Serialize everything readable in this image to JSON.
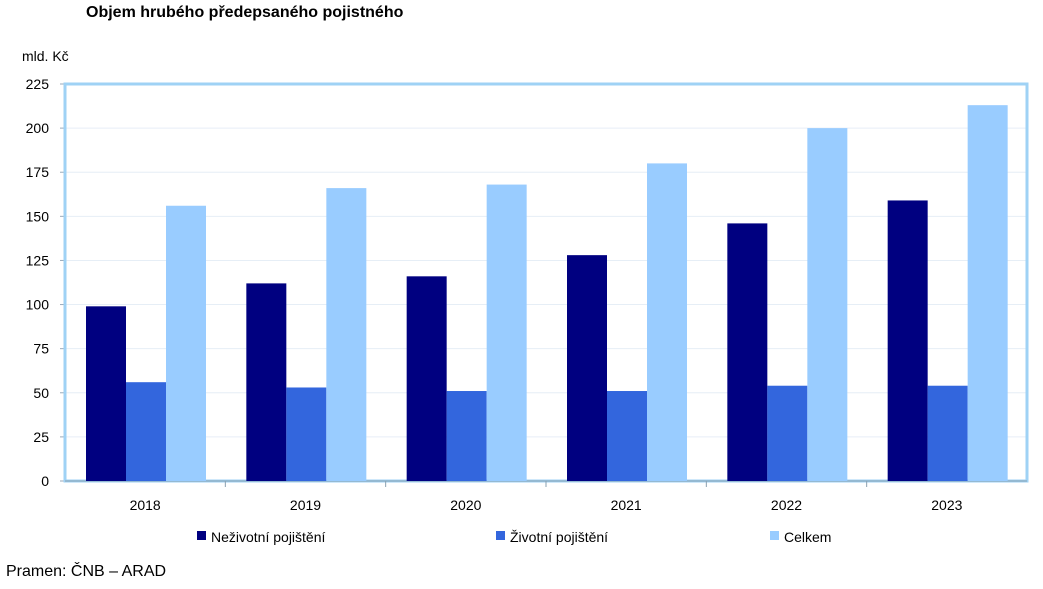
{
  "chart_data": {
    "type": "bar",
    "title": "Objem hrubého předepsaného pojistného",
    "ylabel": "mld. Kč",
    "xlabel": "",
    "source": "Pramen: ČNB – ARAD",
    "categories": [
      "2018",
      "2019",
      "2020",
      "2021",
      "2022",
      "2023"
    ],
    "ylim": [
      0,
      225
    ],
    "yticks": [
      0,
      25,
      50,
      75,
      100,
      125,
      150,
      175,
      200,
      225
    ],
    "grid": true,
    "legend_position": "bottom",
    "series": [
      {
        "name": "Neživotní pojištění",
        "color": "#000080",
        "values": [
          99,
          112,
          116,
          128,
          146,
          159
        ]
      },
      {
        "name": "Životní pojištění",
        "color": "#3366dd",
        "values": [
          56,
          53,
          51,
          51,
          54,
          54
        ]
      },
      {
        "name": "Celkem",
        "color": "#99ccff",
        "values": [
          156,
          166,
          168,
          180,
          200,
          213
        ]
      }
    ]
  }
}
